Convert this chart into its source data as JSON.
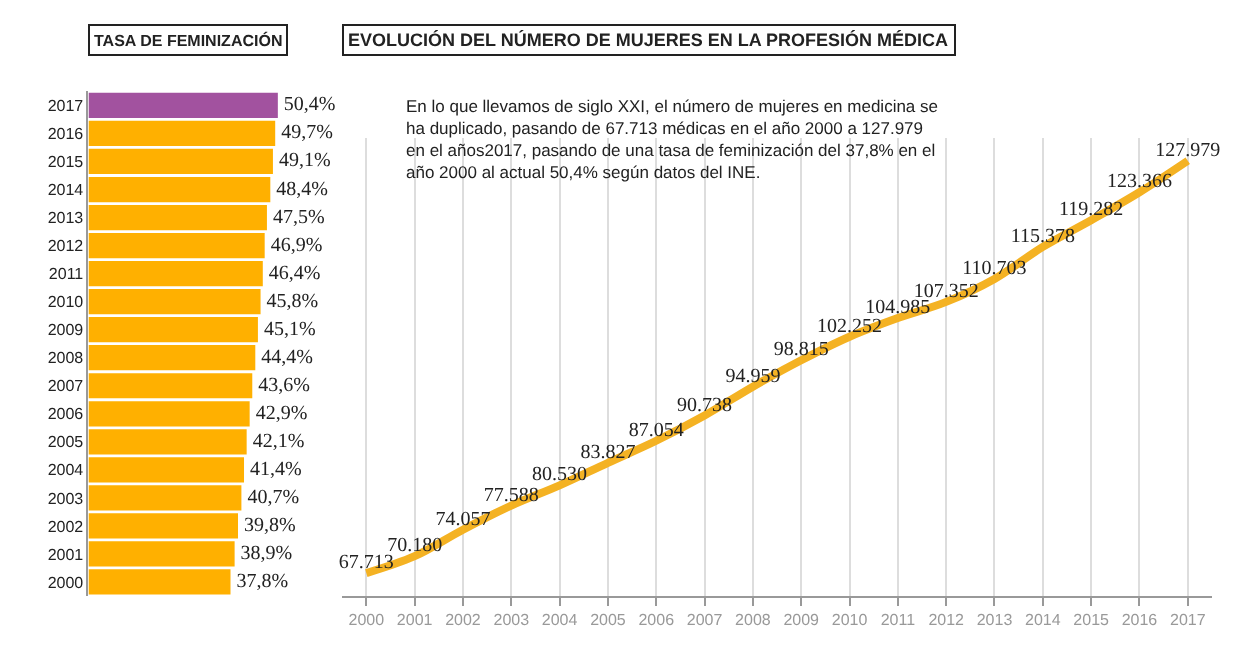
{
  "chart_data": [
    {
      "type": "bar",
      "orientation": "horizontal",
      "title": "TASA DE FEMINIZACIÓN",
      "categories": [
        "2017",
        "2016",
        "2015",
        "2014",
        "2013",
        "2012",
        "2011",
        "2010",
        "2009",
        "2008",
        "2007",
        "2006",
        "2005",
        "2004",
        "2003",
        "2002",
        "2001",
        "2000"
      ],
      "values": [
        50.4,
        49.7,
        49.1,
        48.4,
        47.5,
        46.9,
        46.4,
        45.8,
        45.1,
        44.4,
        43.6,
        42.9,
        42.1,
        41.4,
        40.7,
        39.8,
        38.9,
        37.8
      ],
      "value_labels": [
        "50,4%",
        "49,7%",
        "49,1%",
        "48,4%",
        "47,5%",
        "46,9%",
        "46,4%",
        "45,8%",
        "45,1%",
        "44,4%",
        "43,6%",
        "42,9%",
        "42,1%",
        "41,4%",
        "40,7%",
        "39,8%",
        "38,9%",
        "37,8%"
      ],
      "colors": [
        "#a2529f",
        "#ffb000",
        "#ffb000",
        "#ffb000",
        "#ffb000",
        "#ffb000",
        "#ffb000",
        "#ffb000",
        "#ffb000",
        "#ffb000",
        "#ffb000",
        "#ffb000",
        "#ffb000",
        "#ffb000",
        "#ffb000",
        "#ffb000",
        "#ffb000",
        "#ffb000"
      ],
      "tick_labels": "y",
      "grid": false
    },
    {
      "type": "line",
      "title": "EVOLUCIÓN DEL NÚMERO DE MUJERES EN LA PROFESIÓN MÉDICA",
      "annotations": [
        "En lo que llevamos de siglo XXI, el número de mujeres en medicina se\nha duplicado, pasando de 67.713 médicas en el año 2000 a 127.979\nen el años2017, pasando de una tasa de feminización del 37,8% en el\naño 2000 al actual 50,4% según datos del INE."
      ],
      "categories": [
        "2000",
        "2001",
        "2002",
        "2003",
        "2004",
        "2005",
        "2006",
        "2007",
        "2008",
        "2009",
        "2010",
        "2011",
        "2012",
        "2013",
        "2014",
        "2015",
        "2016",
        "2017"
      ],
      "series": [
        {
          "color": "#f4b223",
          "values": [
            67713,
            70180,
            74057,
            77588,
            80530,
            83827,
            87054,
            90738,
            94959,
            98815,
            102252,
            104985,
            107352,
            110703,
            115378,
            119282,
            123366,
            127979
          ],
          "value_labels": [
            "67.713",
            "70.180",
            "74.057",
            "77.588",
            "80.530",
            "83.827",
            "87.054",
            "90.738",
            "94.959",
            "98.815",
            "102.252",
            "104.985",
            "107.352",
            "110.703",
            "115.378",
            "119.282",
            "123.366",
            "127.979"
          ]
        }
      ],
      "tick_labels": "x",
      "grid": "x",
      "marker": "none",
      "line_style": "solid"
    }
  ]
}
